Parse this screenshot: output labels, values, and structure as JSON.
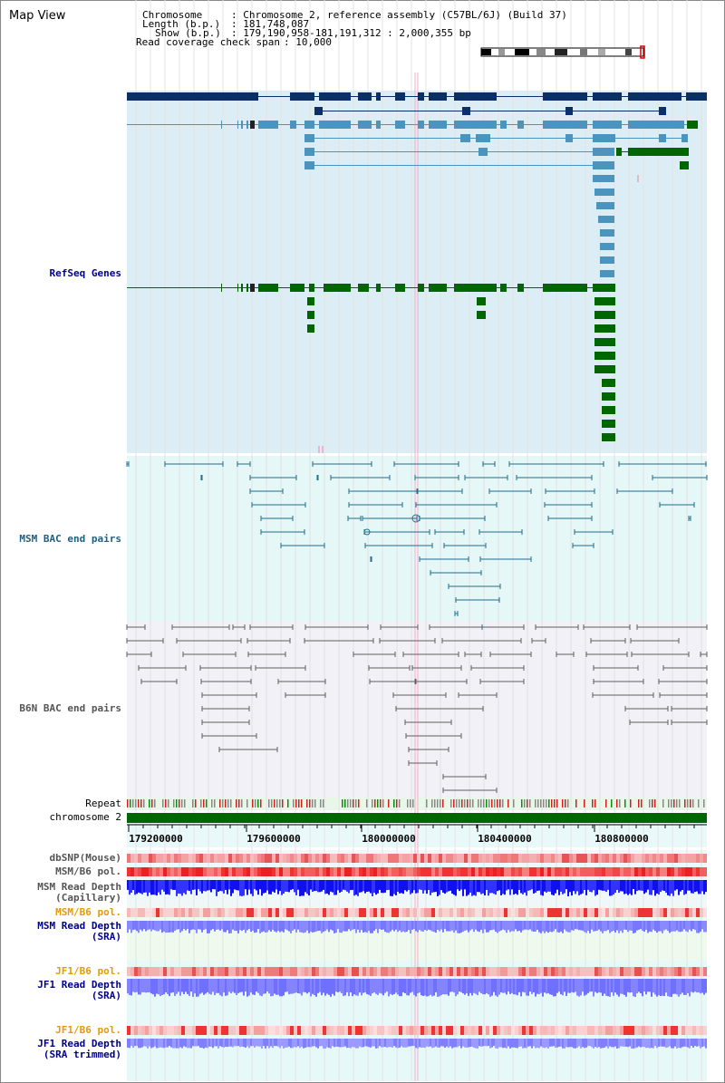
{
  "title": "Map View",
  "header": {
    "chromosome_key": "Chromosome",
    "chromosome_val": ": Chromosome 2, reference assembly (C57BL/6J) (Build 37)",
    "length_key": "Length (b.p.)",
    "length_val": ": 181,748,087",
    "show_key": "Show (b.p.)",
    "show_val": ": 179,190,958-181,191,312 : 2,000,355 bp",
    "coverage_key": "Read coverage check span",
    "coverage_val": ": 10,000"
  },
  "tracks": {
    "refseq": "RefSeq Genes",
    "msm_bac": "MSM BAC end pairs",
    "b6n_bac": "B6N BAC end pairs",
    "repeat": "Repeat",
    "chromosome": "chromosome 2",
    "dbsnp": "dbSNP(Mouse)",
    "msm_pol1": "MSM/B6 pol.",
    "msm_depth_cap": "MSM Read Depth\n(Capillary)",
    "msm_pol2": "MSM/B6 pol.",
    "msm_depth_sra": "MSM Read Depth\n(SRA)",
    "jf1_pol1": "JF1/B6 pol.",
    "jf1_depth_sra": "JF1 Read Depth\n(SRA)",
    "jf1_pol2": "JF1/B6 pol.",
    "jf1_depth_trim": "JF1 Read Depth\n(SRA trimmed)"
  },
  "axis": {
    "ticks": [
      "179200000",
      "179600000",
      "180000000",
      "180400000",
      "180800000"
    ]
  },
  "colors": {
    "refseq_dark": "#0b3066",
    "refseq_mid": "#4a94bd",
    "refseq_green": "#006600",
    "msm_line": "#1f6e8c",
    "b6n_line": "#606060",
    "chromosome_bar": "#006600",
    "depth_blue": "#1a1aff",
    "depth_light": "#7b7bff",
    "pol_red": "#ee4444",
    "label_blue": "#00008b",
    "label_teal": "#1f5f7f",
    "label_orange": "#e89a00"
  }
}
